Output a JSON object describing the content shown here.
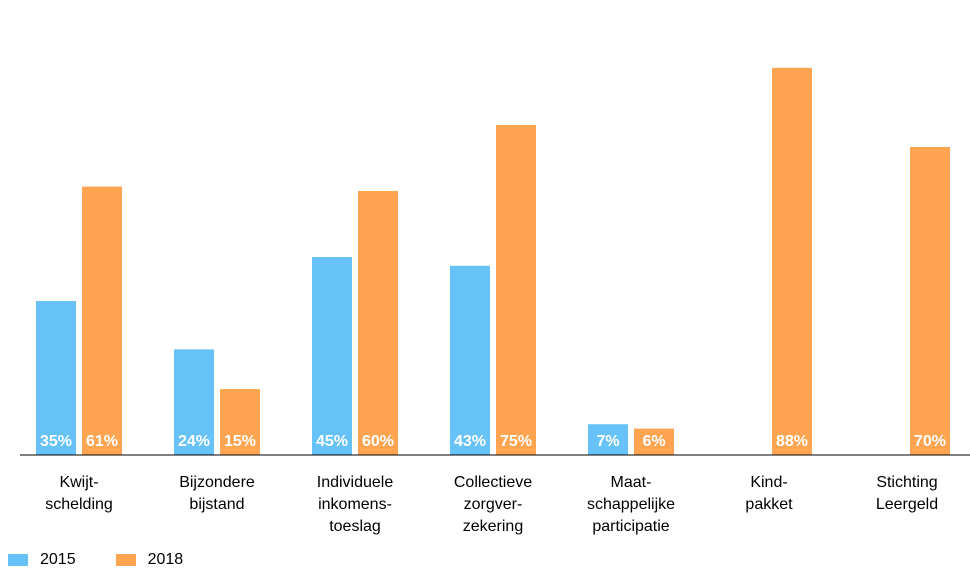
{
  "chart_data": {
    "type": "bar",
    "title": "",
    "xlabel": "",
    "ylabel": "",
    "ylim": [
      0,
      100
    ],
    "grid": false,
    "legend_position": "bottom-left",
    "categories": [
      [
        "Kwijt-",
        "schelding"
      ],
      [
        "Bijzondere",
        "bijstand"
      ],
      [
        "Individuele",
        "inkomens-",
        "toeslag"
      ],
      [
        "Collectieve",
        "zorgver-",
        "zekering"
      ],
      [
        "Maat-",
        "schappelijke",
        "participatie"
      ],
      [
        "Kind-",
        "pakket"
      ],
      [
        "Stichting",
        "Leergeld"
      ]
    ],
    "series": [
      {
        "name": "2015",
        "color": "#66C2F7",
        "values": [
          35,
          24,
          45,
          43,
          7,
          null,
          null
        ],
        "labels": [
          "35%",
          "24%",
          "45%",
          "43%",
          "7%",
          "",
          ""
        ]
      },
      {
        "name": "2018",
        "color": "#FFA552",
        "values": [
          61,
          15,
          60,
          75,
          6,
          88,
          70
        ],
        "labels": [
          "61%",
          "15%",
          "60%",
          "75%",
          "6%",
          "88%",
          "70%"
        ]
      }
    ]
  }
}
